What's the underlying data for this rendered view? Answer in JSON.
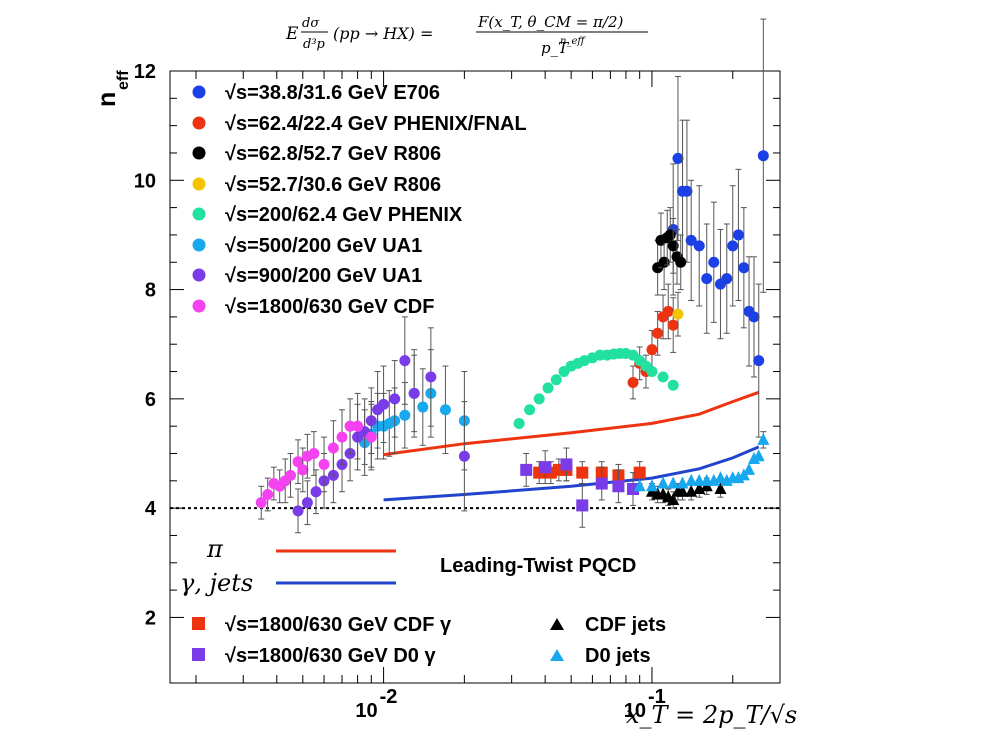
{
  "chart_data": {
    "type": "scatter",
    "title": "E dσ/d³p (pp → HX) = F(x_T, θ_CM = π/2) / p_T^n_eff",
    "title_parts": {
      "lhs_E": "E",
      "lhs_num": "dσ",
      "lhs_den": "d³p",
      "lhs_proc": "(pp → HX) =",
      "rhs_num": "F(x_T, θ_CM = π/2)",
      "rhs_den_base": "p_T",
      "rhs_den_exp": "n_eff"
    },
    "ylabel": "n",
    "ylabel_sub": "eff",
    "xlabel": "x_T = 2p_T/√s",
    "xscale": "log",
    "xlim": [
      0.0016,
      0.3
    ],
    "ylim": [
      0.8,
      12
    ],
    "yticks": [
      {
        "v": 2,
        "t": "2"
      },
      {
        "v": 4,
        "t": "4"
      },
      {
        "v": 6,
        "t": "6"
      },
      {
        "v": 8,
        "t": "8"
      },
      {
        "v": 10,
        "t": "10"
      },
      {
        "v": 12,
        "t": "12"
      }
    ],
    "xticks": [
      {
        "v": 0.01,
        "base": "10",
        "exp": "-2"
      },
      {
        "v": 0.1,
        "base": "10",
        "exp": "-1"
      }
    ],
    "reference_line": {
      "y": 4,
      "style": "dotted"
    },
    "annotation": "Leading-Twist PQCD",
    "curves": [
      {
        "name": "pi",
        "symbol": "π",
        "color": "#ee3311",
        "x": [
          0.01,
          0.02,
          0.05,
          0.1,
          0.15,
          0.2,
          0.25
        ],
        "y": [
          4.98,
          5.18,
          5.38,
          5.55,
          5.72,
          5.95,
          6.12
        ]
      },
      {
        "name": "gamma_jets",
        "symbol": "γ, jets",
        "color": "#2244cc",
        "x": [
          0.01,
          0.02,
          0.05,
          0.1,
          0.15,
          0.2,
          0.25
        ],
        "y": [
          4.15,
          4.25,
          4.4,
          4.55,
          4.72,
          4.92,
          5.12
        ]
      }
    ],
    "series": [
      {
        "name": "√s=38.8/31.6 GeV E706",
        "color": "#1a40e6",
        "marker": "circle",
        "x": [
          0.12,
          0.125,
          0.13,
          0.135,
          0.14,
          0.15,
          0.16,
          0.17,
          0.18,
          0.19,
          0.2,
          0.21,
          0.22,
          0.23,
          0.24,
          0.25,
          0.26
        ],
        "y": [
          9.1,
          10.4,
          9.8,
          9.8,
          8.9,
          8.8,
          8.2,
          8.5,
          8.1,
          8.2,
          8.8,
          9.0,
          8.4,
          7.6,
          7.5,
          6.7,
          10.45
        ],
        "err": [
          1.2,
          1.5,
          1.3,
          1.3,
          1.1,
          1.1,
          1.0,
          1.1,
          1.0,
          1.0,
          1.1,
          1.2,
          1.1,
          1.0,
          1.1,
          1.4,
          2.5
        ]
      },
      {
        "name": "√s=62.4/22.4 GeV PHENIX/FNAL",
        "color": "#ee3311",
        "marker": "circle",
        "x": [
          0.085,
          0.09,
          0.095,
          0.1,
          0.105,
          0.11,
          0.115,
          0.12
        ],
        "y": [
          6.3,
          6.65,
          6.5,
          6.9,
          7.2,
          7.5,
          7.6,
          7.35
        ],
        "err": [
          0.3,
          0.3,
          0.3,
          0.35,
          0.4,
          0.4,
          0.5,
          0.5
        ]
      },
      {
        "name": "√s=62.8/52.7 GeV R806",
        "color": "#000000",
        "marker": "circle",
        "x": [
          0.105,
          0.108,
          0.111,
          0.114,
          0.117,
          0.12,
          0.124,
          0.128
        ],
        "y": [
          8.4,
          8.9,
          8.5,
          8.95,
          9.0,
          8.8,
          8.6,
          8.5
        ],
        "err": [
          0.5,
          0.5,
          0.5,
          0.5,
          0.5,
          0.5,
          0.5,
          0.5
        ]
      },
      {
        "name": "√s=52.7/30.6 GeV R806",
        "color": "#f5c400",
        "marker": "circle",
        "x": [
          0.125
        ],
        "y": [
          7.55
        ],
        "err": [
          0.4
        ]
      },
      {
        "name": "√s=200/62.4 GeV PHENIX",
        "color": "#22e0a0",
        "marker": "circle",
        "x": [
          0.032,
          0.035,
          0.038,
          0.041,
          0.044,
          0.047,
          0.05,
          0.053,
          0.056,
          0.06,
          0.064,
          0.068,
          0.072,
          0.076,
          0.08,
          0.085,
          0.09,
          0.095,
          0.1,
          0.11,
          0.12
        ],
        "y": [
          5.55,
          5.8,
          6.0,
          6.2,
          6.35,
          6.5,
          6.6,
          6.65,
          6.7,
          6.75,
          6.8,
          6.8,
          6.82,
          6.83,
          6.83,
          6.8,
          6.7,
          6.6,
          6.5,
          6.4,
          6.25
        ],
        "err": [
          0.05,
          0.05,
          0.05,
          0.05,
          0.05,
          0.05,
          0.05,
          0.05,
          0.05,
          0.05,
          0.05,
          0.05,
          0.05,
          0.05,
          0.05,
          0.05,
          0.05,
          0.05,
          0.05,
          0.05,
          0.05
        ]
      },
      {
        "name": "√s=500/200 GeV UA1",
        "color": "#18a8ee",
        "marker": "circle",
        "x": [
          0.0085,
          0.009,
          0.0095,
          0.01,
          0.0105,
          0.011,
          0.012,
          0.013,
          0.014,
          0.015,
          0.017,
          0.02
        ],
        "y": [
          5.2,
          5.35,
          5.5,
          5.5,
          5.55,
          5.6,
          5.7,
          6.1,
          5.85,
          6.1,
          5.8,
          5.6
        ],
        "err": [
          0.6,
          0.6,
          0.6,
          0.6,
          0.6,
          0.6,
          0.6,
          0.7,
          0.7,
          0.8,
          0.8,
          0.9
        ]
      },
      {
        "name": "√s=900/200 GeV UA1",
        "color": "#7a3be8",
        "marker": "circle",
        "x": [
          0.0048,
          0.0052,
          0.0056,
          0.006,
          0.0065,
          0.007,
          0.0075,
          0.008,
          0.0085,
          0.009,
          0.0095,
          0.01,
          0.011,
          0.012,
          0.013,
          0.015,
          0.02
        ],
        "y": [
          3.95,
          4.1,
          4.3,
          4.5,
          4.6,
          4.8,
          5.0,
          5.3,
          5.4,
          5.6,
          5.8,
          5.9,
          6.0,
          6.7,
          6.1,
          6.4,
          4.95
        ],
        "err": [
          0.4,
          0.4,
          0.4,
          0.5,
          0.5,
          0.5,
          0.5,
          0.6,
          0.6,
          0.6,
          0.7,
          0.7,
          0.7,
          0.8,
          0.8,
          0.9,
          1.0
        ]
      },
      {
        "name": "√s=1800/630 GeV CDF",
        "color": "#f542f0",
        "marker": "circle",
        "x": [
          0.0035,
          0.0037,
          0.0039,
          0.0041,
          0.0043,
          0.0045,
          0.0048,
          0.005,
          0.0052,
          0.0055,
          0.006,
          0.0065,
          0.007,
          0.0075,
          0.008,
          0.009
        ],
        "y": [
          4.1,
          4.25,
          4.45,
          4.4,
          4.5,
          4.6,
          4.85,
          4.7,
          4.95,
          5.0,
          4.8,
          5.1,
          5.3,
          5.5,
          5.5,
          5.3
        ],
        "err": [
          0.3,
          0.3,
          0.3,
          0.3,
          0.4,
          0.4,
          0.4,
          0.4,
          0.4,
          0.4,
          0.5,
          0.5,
          0.5,
          0.5,
          0.6,
          0.6
        ]
      },
      {
        "name": "√s=1800/630 GeV CDF γ",
        "color": "#ee3311",
        "marker": "square",
        "x": [
          0.038,
          0.042,
          0.045,
          0.048,
          0.055,
          0.065,
          0.075,
          0.09
        ],
        "y": [
          4.65,
          4.65,
          4.7,
          4.7,
          4.65,
          4.65,
          4.6,
          4.65
        ],
        "err": [
          0.2,
          0.2,
          0.2,
          0.2,
          0.2,
          0.2,
          0.2,
          0.2
        ]
      },
      {
        "name": "√s=1800/630 GeV D0 γ",
        "color": "#7a3be8",
        "marker": "square",
        "x": [
          0.034,
          0.04,
          0.048,
          0.055,
          0.065,
          0.075,
          0.085
        ],
        "y": [
          4.7,
          4.75,
          4.8,
          4.05,
          4.45,
          4.4,
          4.35
        ],
        "err": [
          0.3,
          0.3,
          0.3,
          0.4,
          0.3,
          0.3,
          0.3
        ]
      },
      {
        "name": "CDF jets",
        "color": "#000000",
        "marker": "triangle",
        "x": [
          0.1,
          0.105,
          0.11,
          0.115,
          0.12,
          0.125,
          0.13,
          0.14,
          0.15,
          0.16,
          0.18
        ],
        "y": [
          4.3,
          4.25,
          4.25,
          4.2,
          4.15,
          4.3,
          4.3,
          4.3,
          4.35,
          4.4,
          4.35
        ],
        "err": [
          0.15,
          0.15,
          0.15,
          0.15,
          0.15,
          0.15,
          0.15,
          0.15,
          0.15,
          0.15,
          0.15
        ]
      },
      {
        "name": "D0 jets",
        "color": "#18a8ee",
        "marker": "triangle",
        "x": [
          0.09,
          0.1,
          0.11,
          0.12,
          0.13,
          0.14,
          0.15,
          0.16,
          0.17,
          0.18,
          0.19,
          0.2,
          0.21,
          0.22,
          0.23,
          0.24,
          0.25,
          0.26
        ],
        "y": [
          4.4,
          4.4,
          4.45,
          4.45,
          4.45,
          4.5,
          4.5,
          4.5,
          4.5,
          4.55,
          4.5,
          4.55,
          4.55,
          4.6,
          4.7,
          4.9,
          4.95,
          5.25
        ],
        "err": [
          0.1,
          0.1,
          0.1,
          0.1,
          0.1,
          0.1,
          0.1,
          0.1,
          0.1,
          0.1,
          0.1,
          0.1,
          0.1,
          0.1,
          0.1,
          0.1,
          0.1,
          0.15
        ]
      }
    ]
  }
}
